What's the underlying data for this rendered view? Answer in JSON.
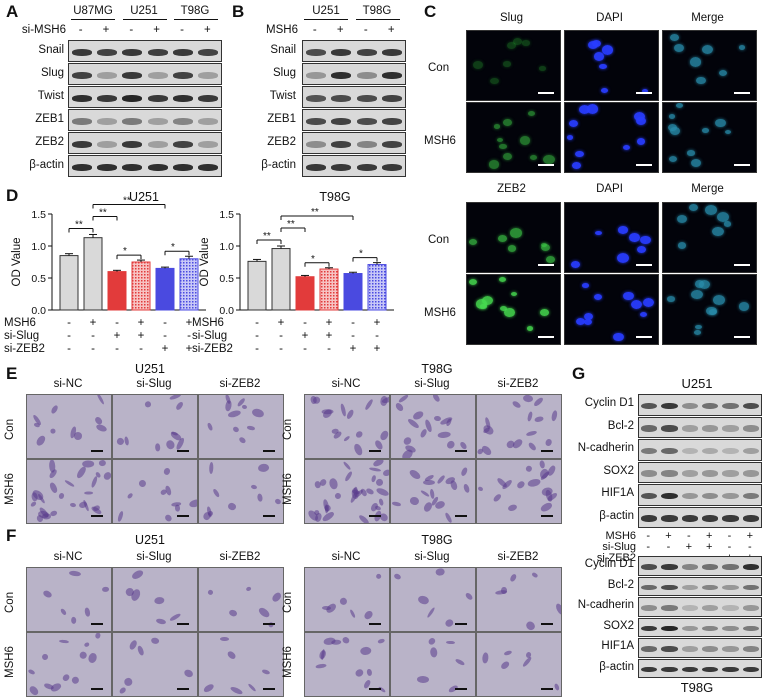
{
  "panels": {
    "a": "A",
    "b": "B",
    "c": "C",
    "d": "D",
    "e": "E",
    "f": "F",
    "g": "G"
  },
  "panel_a": {
    "groups": [
      "U87MG",
      "U251",
      "T98G"
    ],
    "treat_label": "si-MSH6",
    "treat_signs": [
      "-",
      "+",
      "-",
      "+",
      "-",
      "+"
    ],
    "rows": [
      "Snail",
      "Slug",
      "Twist",
      "ZEB1",
      "ZEB2",
      "β-actin"
    ],
    "intensity": [
      [
        0.85,
        0.8,
        0.85,
        0.82,
        0.85,
        0.8
      ],
      [
        0.8,
        0.3,
        0.85,
        0.3,
        0.8,
        0.3
      ],
      [
        0.9,
        0.85,
        0.95,
        0.85,
        0.9,
        0.85
      ],
      [
        0.5,
        0.3,
        0.5,
        0.3,
        0.45,
        0.3
      ],
      [
        0.85,
        0.3,
        0.85,
        0.3,
        0.8,
        0.3
      ],
      [
        0.9,
        0.9,
        0.9,
        0.9,
        0.9,
        0.9
      ]
    ]
  },
  "panel_b": {
    "groups": [
      "U251",
      "T98G"
    ],
    "treat_label": "MSH6",
    "treat_signs": [
      "-",
      "+",
      "-",
      "+"
    ],
    "rows": [
      "Snail",
      "Slug",
      "Twist",
      "ZEB1",
      "ZEB2",
      "β-actin"
    ],
    "intensity": [
      [
        0.75,
        0.85,
        0.8,
        0.85
      ],
      [
        0.35,
        0.9,
        0.4,
        0.9
      ],
      [
        0.7,
        0.75,
        0.75,
        0.8
      ],
      [
        0.75,
        0.8,
        0.75,
        0.8
      ],
      [
        0.4,
        0.8,
        0.45,
        0.8
      ],
      [
        0.85,
        0.85,
        0.85,
        0.85
      ]
    ]
  },
  "panel_c": {
    "top_headers": [
      "Slug",
      "DAPI",
      "Merge"
    ],
    "bottom_headers": [
      "ZEB2",
      "DAPI",
      "Merge"
    ],
    "rows": [
      "Con",
      "MSH6"
    ]
  },
  "panel_d": {
    "conditions": {
      "labels": [
        "MSH6",
        "si-Slug",
        "si-ZEB2"
      ],
      "signs": [
        [
          "-",
          "+",
          "-",
          "+",
          "-",
          "+"
        ],
        [
          "-",
          "-",
          "+",
          "+",
          "-",
          "-"
        ],
        [
          "-",
          "-",
          "-",
          "-",
          "+",
          "+"
        ]
      ]
    },
    "sig_marks": {
      "double": "**",
      "single": "*"
    },
    "colors": {
      "control": "#d9d9d9",
      "slug": "#e23b3b",
      "zeb2": "#4a4ae0"
    }
  },
  "chart_data": [
    {
      "type": "bar",
      "title": "U251",
      "ylabel": "OD Value",
      "ylim": [
        0,
        1.5
      ],
      "yticks": [
        "0.0",
        "0.5",
        "1.0",
        "1.5"
      ],
      "values": [
        0.85,
        1.13,
        0.6,
        0.75,
        0.65,
        0.8
      ],
      "errors": [
        0.03,
        0.05,
        0.02,
        0.03,
        0.02,
        0.04
      ]
    },
    {
      "type": "bar",
      "title": "T98G",
      "ylabel": "OD Value",
      "ylim": [
        0,
        1.5
      ],
      "yticks": [
        "0.0",
        "0.5",
        "1.0",
        "1.5"
      ],
      "values": [
        0.76,
        0.96,
        0.52,
        0.64,
        0.57,
        0.71
      ],
      "errors": [
        0.03,
        0.04,
        0.02,
        0.02,
        0.02,
        0.03
      ]
    }
  ],
  "panel_e": {
    "left_title": "U251",
    "right_title": "T98G",
    "cols": [
      "si-NC",
      "si-Slug",
      "si-ZEB2"
    ],
    "rows": [
      "Con",
      "MSH6"
    ]
  },
  "panel_f": {
    "left_title": "U251",
    "right_title": "T98G",
    "cols": [
      "si-NC",
      "si-Slug",
      "si-ZEB2"
    ],
    "rows": [
      "Con",
      "MSH6"
    ]
  },
  "panel_g": {
    "top_title": "U251",
    "bottom_title": "T98G",
    "rows": [
      "Cyclin D1",
      "Bcl-2",
      "N-cadherin",
      "SOX2",
      "HIF1A",
      "β-actin"
    ],
    "cond_labels": [
      "MSH6",
      "si-Slug",
      "si-ZEB2"
    ],
    "cond_signs": [
      [
        "-",
        "+",
        "-",
        "+",
        "-",
        "+"
      ],
      [
        "-",
        "-",
        "+",
        "+",
        "-",
        "-"
      ],
      [
        "-",
        "-",
        "-",
        "-",
        "+",
        "+"
      ]
    ],
    "top_intensity": [
      [
        0.7,
        0.85,
        0.4,
        0.55,
        0.55,
        0.75
      ],
      [
        0.6,
        0.75,
        0.3,
        0.35,
        0.3,
        0.4
      ],
      [
        0.5,
        0.6,
        0.2,
        0.25,
        0.2,
        0.3
      ],
      [
        0.4,
        0.45,
        0.3,
        0.35,
        0.3,
        0.35
      ],
      [
        0.7,
        0.9,
        0.35,
        0.4,
        0.35,
        0.5
      ],
      [
        0.85,
        0.85,
        0.85,
        0.85,
        0.85,
        0.85
      ]
    ],
    "bottom_intensity": [
      [
        0.75,
        0.85,
        0.45,
        0.55,
        0.55,
        0.9
      ],
      [
        0.6,
        0.75,
        0.3,
        0.45,
        0.35,
        0.55
      ],
      [
        0.4,
        0.5,
        0.2,
        0.3,
        0.2,
        0.35
      ],
      [
        0.85,
        0.95,
        0.35,
        0.45,
        0.4,
        0.5
      ],
      [
        0.6,
        0.75,
        0.3,
        0.4,
        0.35,
        0.45
      ],
      [
        0.85,
        0.85,
        0.85,
        0.85,
        0.85,
        0.85
      ]
    ]
  }
}
